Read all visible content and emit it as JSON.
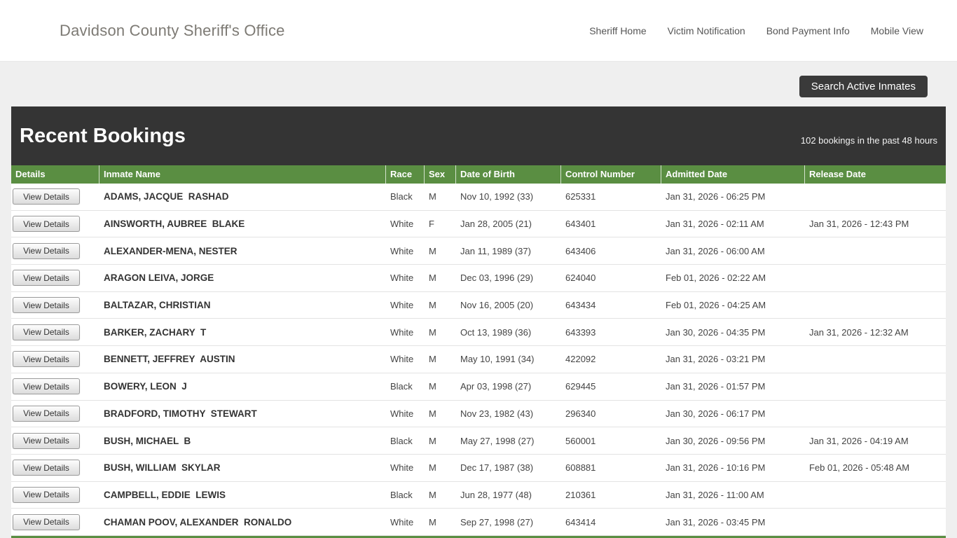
{
  "brand": {
    "title": "Davidson County Sheriff's Office"
  },
  "nav": {
    "items": [
      "Sheriff Home",
      "Victim Notification",
      "Bond Payment Info",
      "Mobile View"
    ]
  },
  "actions": {
    "search_label": "Search Active Inmates"
  },
  "bookings": {
    "title": "Recent Bookings",
    "count_text": "102 bookings in the past 48 hours",
    "view_details_label": "View Details",
    "columns": [
      "Details",
      "Inmate Name",
      "Race",
      "Sex",
      "Date of Birth",
      "Control Number",
      "Admitted Date",
      "Release Date"
    ],
    "rows": [
      {
        "name": "ADAMS, JACQUE  RASHAD",
        "race": "Black",
        "sex": "M",
        "dob": "Nov 10, 1992 (33)",
        "control": "625331",
        "admitted": "Jan 31, 2026 - 06:25 PM",
        "released": ""
      },
      {
        "name": "AINSWORTH, AUBREE  BLAKE",
        "race": "White",
        "sex": "F",
        "dob": "Jan 28, 2005 (21)",
        "control": "643401",
        "admitted": "Jan 31, 2026 - 02:11 AM",
        "released": "Jan 31, 2026 - 12:43 PM"
      },
      {
        "name": "ALEXANDER-MENA, NESTER",
        "race": "White",
        "sex": "M",
        "dob": "Jan 11, 1989 (37)",
        "control": "643406",
        "admitted": "Jan 31, 2026 - 06:00 AM",
        "released": ""
      },
      {
        "name": "ARAGON LEIVA, JORGE",
        "race": "White",
        "sex": "M",
        "dob": "Dec 03, 1996 (29)",
        "control": "624040",
        "admitted": "Feb 01, 2026 - 02:22 AM",
        "released": ""
      },
      {
        "name": "BALTAZAR, CHRISTIAN",
        "race": "White",
        "sex": "M",
        "dob": "Nov 16, 2005 (20)",
        "control": "643434",
        "admitted": "Feb 01, 2026 - 04:25 AM",
        "released": ""
      },
      {
        "name": "BARKER, ZACHARY  T",
        "race": "White",
        "sex": "M",
        "dob": "Oct 13, 1989 (36)",
        "control": "643393",
        "admitted": "Jan 30, 2026 - 04:35 PM",
        "released": "Jan 31, 2026 - 12:32 AM"
      },
      {
        "name": "BENNETT, JEFFREY  AUSTIN",
        "race": "White",
        "sex": "M",
        "dob": "May 10, 1991 (34)",
        "control": "422092",
        "admitted": "Jan 31, 2026 - 03:21 PM",
        "released": ""
      },
      {
        "name": "BOWERY, LEON  J",
        "race": "Black",
        "sex": "M",
        "dob": "Apr 03, 1998 (27)",
        "control": "629445",
        "admitted": "Jan 31, 2026 - 01:57 PM",
        "released": ""
      },
      {
        "name": "BRADFORD, TIMOTHY  STEWART",
        "race": "White",
        "sex": "M",
        "dob": "Nov 23, 1982 (43)",
        "control": "296340",
        "admitted": "Jan 30, 2026 - 06:17 PM",
        "released": ""
      },
      {
        "name": "BUSH, MICHAEL  B",
        "race": "Black",
        "sex": "M",
        "dob": "May 27, 1998 (27)",
        "control": "560001",
        "admitted": "Jan 30, 2026 - 09:56 PM",
        "released": "Jan 31, 2026 - 04:19 AM"
      },
      {
        "name": "BUSH, WILLIAM  SKYLAR",
        "race": "White",
        "sex": "M",
        "dob": "Dec 17, 1987 (38)",
        "control": "608881",
        "admitted": "Jan 31, 2026 - 10:16 PM",
        "released": "Feb 01, 2026 - 05:48 AM"
      },
      {
        "name": "CAMPBELL, EDDIE  LEWIS",
        "race": "Black",
        "sex": "M",
        "dob": "Jun 28, 1977 (48)",
        "control": "210361",
        "admitted": "Jan 31, 2026 - 11:00 AM",
        "released": ""
      },
      {
        "name": "CHAMAN POOV, ALEXANDER  RONALDO",
        "race": "White",
        "sex": "M",
        "dob": "Sep 27, 1998 (27)",
        "control": "643414",
        "admitted": "Jan 31, 2026 - 03:45 PM",
        "released": ""
      }
    ]
  },
  "colors": {
    "accent_green": "#5a8e42",
    "header_dark": "#343434",
    "page_bg": "#efefef"
  }
}
